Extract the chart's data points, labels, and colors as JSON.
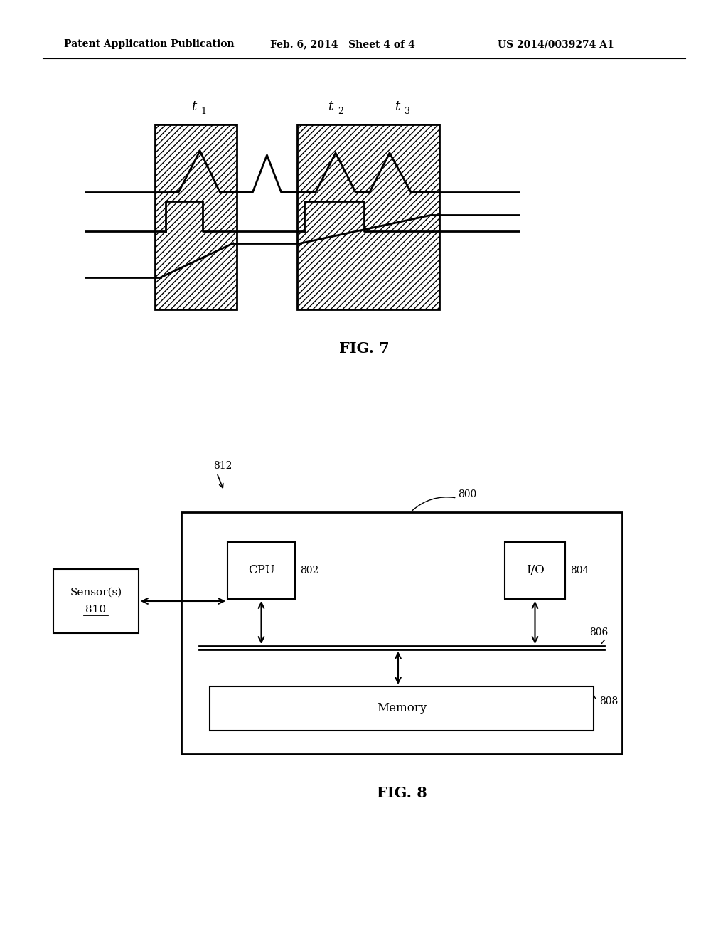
{
  "bg_color": "#ffffff",
  "header_left": "Patent Application Publication",
  "header_mid": "Feb. 6, 2014   Sheet 4 of 4",
  "header_right": "US 2014/0039274 A1",
  "fig7_label": "FIG. 7",
  "fig8_label": "FIG. 8",
  "fig7_t1": "t",
  "fig7_t2": "t",
  "fig7_t3": "t",
  "fig7_sub1": "1",
  "fig7_sub2": "2",
  "fig7_sub3": "3",
  "fig8_800": "800",
  "fig8_802": "802",
  "fig8_804": "804",
  "fig8_806": "806",
  "fig8_808": "808",
  "fig8_810": "810",
  "fig8_812": "812",
  "fig8_cpu": "CPU",
  "fig8_io": "I/O",
  "fig8_memory": "Memory",
  "fig8_sensor_line1": "Sensor(s)",
  "fig8_sensor_line2": "810"
}
